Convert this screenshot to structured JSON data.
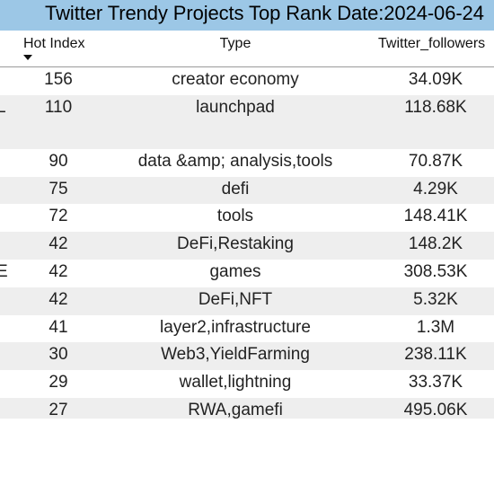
{
  "title": "Twitter Trendy Projects Top Rank Date:2024-06-24",
  "columns": {
    "hot_index": "Hot Index",
    "type": "Type",
    "twitter_followers": "Twitter_followers"
  },
  "sort": {
    "column": "Hot Index",
    "direction": "descending",
    "icon": "sort-desc-icon"
  },
  "colors": {
    "title_bg": "#9cc7e6",
    "alt_row_bg": "#eeeeee"
  },
  "rows": [
    {
      "name": "",
      "hot": "156",
      "type": "creator economy",
      "followers": "34.09K"
    },
    {
      "name": "L",
      "hot": "110",
      "type": "launchpad",
      "followers": "118.68K"
    },
    {
      "name": "",
      "hot": "90",
      "type": "data &amp; analysis,tools",
      "followers": "70.87K"
    },
    {
      "name": "",
      "hot": "75",
      "type": "defi",
      "followers": "4.29K"
    },
    {
      "name": "",
      "hot": "72",
      "type": "tools",
      "followers": "148.41K"
    },
    {
      "name": "",
      "hot": "42",
      "type": "DeFi,Restaking",
      "followers": "148.2K"
    },
    {
      "name": "E",
      "hot": "42",
      "type": "games",
      "followers": "308.53K"
    },
    {
      "name": "",
      "hot": "42",
      "type": "DeFi,NFT",
      "followers": "5.32K"
    },
    {
      "name": "",
      "hot": "41",
      "type": "layer2,infrastructure",
      "followers": "1.3M"
    },
    {
      "name": "",
      "hot": "30",
      "type": "Web3,YieldFarming",
      "followers": "238.11K"
    },
    {
      "name": "",
      "hot": "29",
      "type": "wallet,lightning",
      "followers": "33.37K"
    },
    {
      "name": "",
      "hot": "27",
      "type": "RWA,gamefi",
      "followers": "495.06K"
    }
  ]
}
